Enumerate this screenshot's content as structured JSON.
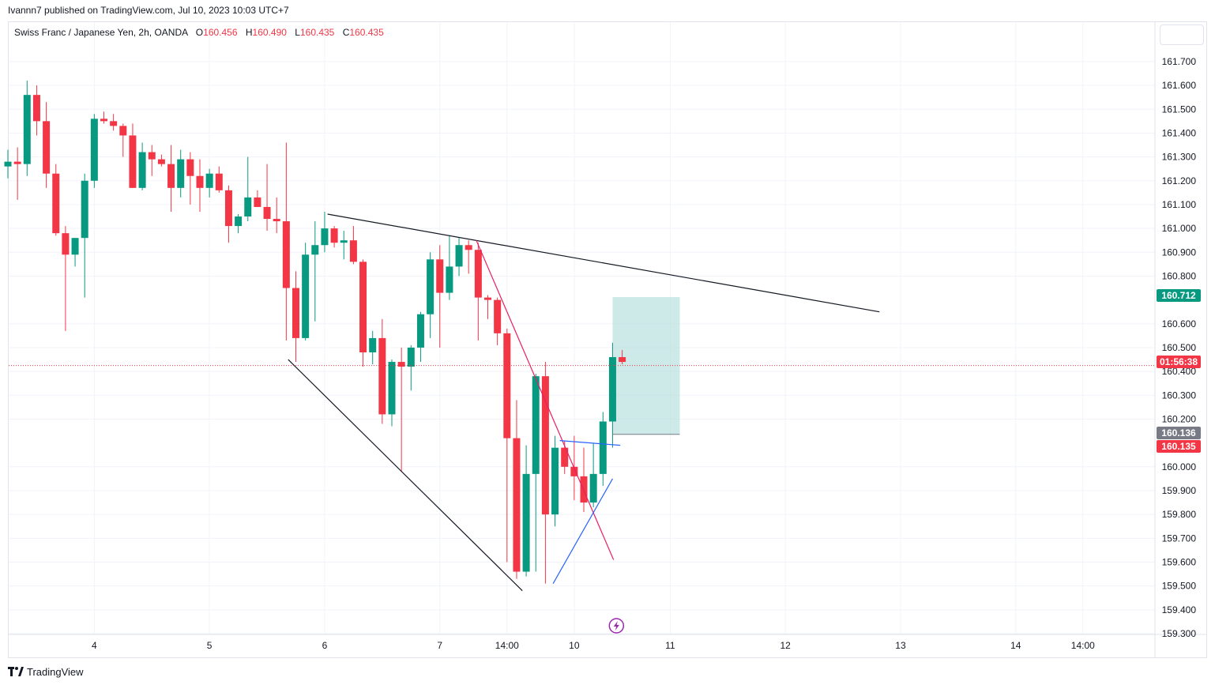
{
  "publisher_line": "Ivannn7 published on TradingView.com, Jul 10, 2023 10:03 UTC+7",
  "legend": {
    "symbol": "Swiss Franc / Japanese Yen, 2h, OANDA",
    "open_label": "O",
    "open": "160.456",
    "high_label": "H",
    "high": "160.490",
    "low_label": "L",
    "low": "160.435",
    "close_label": "C",
    "close": "160.435"
  },
  "footer": {
    "brand": "TradingView",
    "logo_icon": "tradingview-logo-icon"
  },
  "colors": {
    "up": "#089981",
    "down": "#f23645",
    "grid": "#f0f3fa",
    "trendline": "#131722",
    "pink_line": "#e91e63",
    "blue_line": "#2962ff",
    "target_zone": "#b2dfdb",
    "lightning": "#9c27b0"
  },
  "chart_data": {
    "type": "candlestick",
    "y_ticks": [
      "161.700",
      "161.600",
      "161.500",
      "161.400",
      "161.300",
      "161.200",
      "161.100",
      "161.000",
      "160.900",
      "160.800",
      "160.600",
      "160.500",
      "160.400",
      "160.300",
      "160.200",
      "160.000",
      "159.900",
      "159.800",
      "159.700",
      "159.600",
      "159.500",
      "159.400",
      "159.300"
    ],
    "ylim": [
      159.3,
      161.7
    ],
    "x_ticks": [
      {
        "label": "4",
        "candle": 9
      },
      {
        "label": "5",
        "candle": 21
      },
      {
        "label": "6",
        "candle": 33
      },
      {
        "label": "7",
        "candle": 45
      },
      {
        "label": "14:00",
        "candle": 52
      },
      {
        "label": "10",
        "candle": 59
      },
      {
        "label": "11",
        "candle": 69
      },
      {
        "label": "12",
        "candle": 81
      },
      {
        "label": "13",
        "candle": 93
      },
      {
        "label": "14",
        "candle": 105
      },
      {
        "label": "14:00",
        "candle": 112
      }
    ],
    "candles": [
      [
        161.26,
        161.33,
        161.21,
        161.28
      ],
      [
        161.28,
        161.34,
        161.12,
        161.27
      ],
      [
        161.27,
        161.62,
        161.22,
        161.56
      ],
      [
        161.56,
        161.6,
        161.39,
        161.45
      ],
      [
        161.45,
        161.53,
        161.17,
        161.23
      ],
      [
        161.23,
        161.27,
        160.97,
        160.98
      ],
      [
        160.98,
        161.01,
        160.57,
        160.89
      ],
      [
        160.89,
        160.96,
        160.84,
        160.96
      ],
      [
        160.96,
        161.23,
        160.71,
        161.2
      ],
      [
        161.2,
        161.48,
        161.17,
        161.46
      ],
      [
        161.46,
        161.49,
        161.44,
        161.45
      ],
      [
        161.45,
        161.48,
        161.41,
        161.43
      ],
      [
        161.43,
        161.44,
        161.3,
        161.39
      ],
      [
        161.39,
        161.44,
        161.17,
        161.17
      ],
      [
        161.17,
        161.36,
        161.16,
        161.32
      ],
      [
        161.32,
        161.35,
        161.22,
        161.29
      ],
      [
        161.29,
        161.31,
        161.26,
        161.27
      ],
      [
        161.27,
        161.35,
        161.07,
        161.17
      ],
      [
        161.17,
        161.33,
        161.13,
        161.29
      ],
      [
        161.29,
        161.32,
        161.1,
        161.22
      ],
      [
        161.22,
        161.29,
        161.07,
        161.17
      ],
      [
        161.17,
        161.25,
        161.13,
        161.23
      ],
      [
        161.23,
        161.26,
        161.15,
        161.16
      ],
      [
        161.16,
        161.18,
        160.94,
        161.01
      ],
      [
        161.01,
        161.06,
        160.98,
        161.05
      ],
      [
        161.05,
        161.3,
        161.03,
        161.13
      ],
      [
        161.13,
        161.16,
        161.09,
        161.09
      ],
      [
        161.09,
        161.27,
        160.99,
        161.04
      ],
      [
        161.04,
        161.13,
        160.98,
        161.03
      ],
      [
        161.03,
        161.36,
        160.53,
        160.75
      ],
      [
        160.75,
        160.82,
        160.44,
        160.54
      ],
      [
        160.54,
        160.94,
        160.53,
        160.89
      ],
      [
        160.89,
        161.03,
        160.61,
        160.93
      ],
      [
        160.93,
        161.07,
        160.9,
        161.0
      ],
      [
        161.0,
        161.01,
        160.92,
        160.94
      ],
      [
        160.94,
        160.99,
        160.87,
        160.95
      ],
      [
        160.95,
        161.01,
        160.85,
        160.86
      ],
      [
        160.86,
        160.87,
        160.42,
        160.48
      ],
      [
        160.48,
        160.57,
        160.43,
        160.54
      ],
      [
        160.54,
        160.62,
        160.18,
        160.22
      ],
      [
        160.22,
        160.45,
        160.17,
        160.44
      ],
      [
        160.44,
        160.5,
        159.98,
        160.42
      ],
      [
        160.42,
        160.51,
        160.32,
        160.5
      ],
      [
        160.5,
        160.65,
        160.44,
        160.64
      ],
      [
        160.64,
        160.9,
        160.54,
        160.87
      ],
      [
        160.87,
        160.93,
        160.5,
        160.73
      ],
      [
        160.73,
        160.97,
        160.7,
        160.84
      ],
      [
        160.84,
        160.96,
        160.8,
        160.93
      ],
      [
        160.93,
        160.95,
        160.81,
        160.91
      ],
      [
        160.91,
        160.94,
        160.53,
        160.71
      ],
      [
        160.71,
        160.72,
        160.62,
        160.7
      ],
      [
        160.7,
        160.71,
        160.51,
        160.56
      ],
      [
        160.56,
        160.58,
        159.6,
        160.12
      ],
      [
        160.12,
        160.28,
        159.53,
        159.56
      ],
      [
        159.56,
        160.09,
        159.54,
        159.97
      ],
      [
        159.97,
        160.39,
        159.56,
        160.38
      ],
      [
        160.38,
        160.44,
        159.51,
        159.8
      ],
      [
        159.8,
        160.13,
        159.75,
        160.08
      ],
      [
        160.08,
        160.11,
        159.97,
        160.0
      ],
      [
        160.0,
        160.13,
        159.86,
        159.96
      ],
      [
        159.96,
        160.08,
        159.81,
        159.85
      ],
      [
        159.85,
        160.1,
        159.83,
        159.97
      ],
      [
        159.97,
        160.23,
        159.92,
        160.19
      ],
      [
        160.19,
        160.52,
        160.08,
        160.46
      ],
      [
        160.46,
        160.49,
        160.43,
        160.44
      ]
    ],
    "trendlines": [
      {
        "name": "upper-trendline",
        "color": "#131722",
        "from": {
          "candle": 33.3,
          "price": 161.06
        },
        "to": {
          "candle": 90.8,
          "price": 160.65
        }
      },
      {
        "name": "lower-trendline",
        "color": "#131722",
        "from": {
          "candle": 29.2,
          "price": 160.45
        },
        "to": {
          "candle": 53.6,
          "price": 159.48
        }
      },
      {
        "name": "pink-line",
        "color": "#e91e63",
        "from": {
          "candle": 48.8,
          "price": 160.95
        },
        "to": {
          "candle": 63.1,
          "price": 159.61
        }
      },
      {
        "name": "blue-line-upper",
        "color": "#2962ff",
        "from": {
          "candle": 57.5,
          "price": 160.11
        },
        "to": {
          "candle": 63.8,
          "price": 160.09
        }
      },
      {
        "name": "blue-line-lower",
        "color": "#2962ff",
        "from": {
          "candle": 56.8,
          "price": 159.51
        },
        "to": {
          "candle": 63.0,
          "price": 159.95
        }
      }
    ],
    "target_zone": {
      "from_candle": 63.0,
      "to_candle": 70.0,
      "top": 160.712,
      "bottom": 160.136
    },
    "current_price": 160.435,
    "price_badges": [
      {
        "text": "160.712",
        "price": 160.712,
        "color": "#089981"
      },
      {
        "text": "01:56:38",
        "price": 160.44,
        "color": "#f23645"
      },
      {
        "text": "160.136",
        "price": 160.136,
        "color": "#787b86"
      },
      {
        "text": "160.135",
        "price": 160.135,
        "color": "#f23645"
      }
    ],
    "lightning_marker_candle": 63.4
  }
}
